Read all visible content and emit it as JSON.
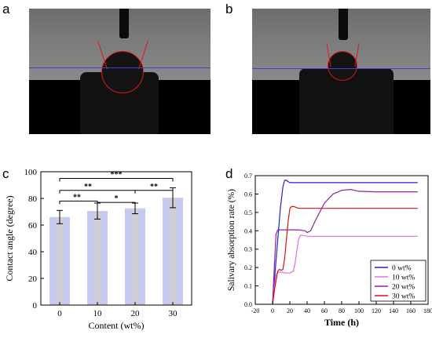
{
  "panels": {
    "a": "a",
    "b": "b",
    "c": "c",
    "d": "d"
  },
  "colors": {
    "bar_fill": "#c3c9ee",
    "bar_fill_inner": "#d7d2c9",
    "baseline_blue": "#3b46c8",
    "circle_red": "#e01818"
  },
  "chart_data": [
    {
      "type": "bar",
      "title": "",
      "xlabel": "Content (wt%)",
      "ylabel": "Contact angle (degree)",
      "categories": [
        "0",
        "10",
        "20",
        "30"
      ],
      "values": [
        66,
        70.5,
        72.5,
        80.5
      ],
      "errors": [
        5,
        6,
        4,
        7.5
      ],
      "ylim": [
        0,
        100
      ],
      "yticks": [
        "0",
        "20",
        "40",
        "60",
        "80",
        "100"
      ],
      "significance": [
        {
          "from": "0",
          "to": "30",
          "label": "***"
        },
        {
          "from": "0",
          "to": "20",
          "label": "**"
        },
        {
          "from": "0",
          "to": "10",
          "label": "**"
        },
        {
          "from": "10",
          "to": "20",
          "label": "*"
        },
        {
          "from": "20",
          "to": "30",
          "label": "**"
        }
      ]
    },
    {
      "type": "line",
      "title": "",
      "xlabel": "Time (h)",
      "ylabel": "Salivary absorption rate (%)",
      "xlim": [
        -20,
        180
      ],
      "ylim": [
        0,
        0.7
      ],
      "xticks": [
        "-20",
        "0",
        "20",
        "40",
        "60",
        "80",
        "100",
        "120",
        "140",
        "160",
        "180"
      ],
      "yticks": [
        "0.0",
        "0.1",
        "0.2",
        "0.3",
        "0.4",
        "0.5",
        "0.6",
        "0.7"
      ],
      "legend_position": "bottom-right",
      "series": [
        {
          "name": "0 wt%",
          "color": "#2222cc",
          "x": [
            0,
            3,
            6,
            9,
            12,
            14,
            16,
            18,
            20,
            25,
            30,
            60,
            100,
            168
          ],
          "y": [
            0,
            0.18,
            0.35,
            0.52,
            0.64,
            0.675,
            0.675,
            0.668,
            0.662,
            0.662,
            0.662,
            0.662,
            0.662,
            0.662
          ]
        },
        {
          "name": "10 wt%",
          "color": "#e070e0",
          "x": [
            0,
            2,
            4,
            6,
            10,
            15,
            20,
            24,
            26,
            28,
            30,
            32,
            35,
            40,
            60,
            100,
            168
          ],
          "y": [
            0,
            0.09,
            0.16,
            0.175,
            0.175,
            0.17,
            0.17,
            0.18,
            0.22,
            0.29,
            0.35,
            0.375,
            0.375,
            0.37,
            0.37,
            0.37,
            0.37
          ]
        },
        {
          "name": "20 wt%",
          "color": "#9020a0",
          "x": [
            0,
            2,
            4,
            6,
            10,
            20,
            30,
            38,
            40,
            44,
            50,
            60,
            70,
            80,
            90,
            100,
            120,
            168
          ],
          "y": [
            0,
            0.2,
            0.38,
            0.405,
            0.405,
            0.405,
            0.405,
            0.4,
            0.39,
            0.4,
            0.46,
            0.55,
            0.6,
            0.62,
            0.625,
            0.615,
            0.612,
            0.612
          ]
        },
        {
          "name": "30 wt%",
          "color": "#dd1111",
          "x": [
            0,
            3,
            6,
            8,
            10,
            12,
            14,
            16,
            18,
            20,
            22,
            25,
            30,
            60,
            100,
            168
          ],
          "y": [
            0,
            0.1,
            0.18,
            0.19,
            0.185,
            0.19,
            0.25,
            0.35,
            0.45,
            0.52,
            0.532,
            0.532,
            0.522,
            0.522,
            0.522,
            0.522
          ]
        }
      ]
    }
  ]
}
